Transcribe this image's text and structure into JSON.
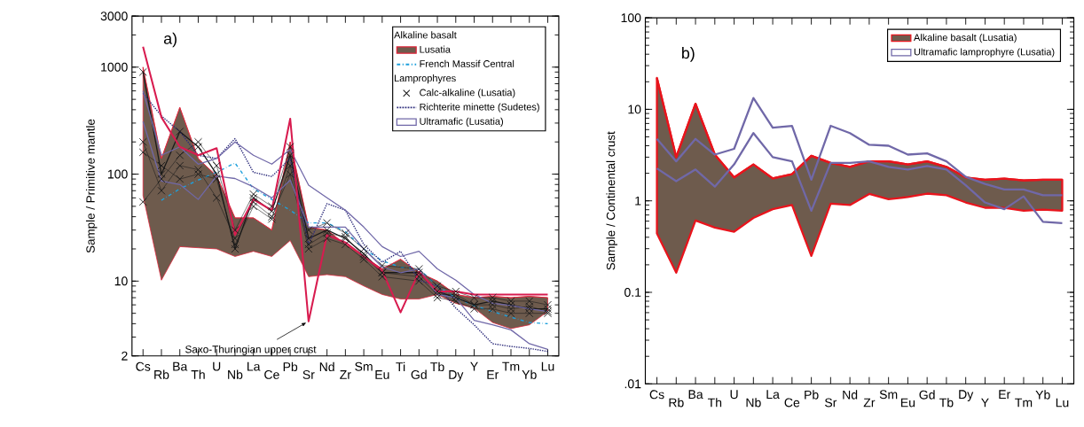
{
  "chart_data": [
    {
      "type": "line",
      "ylabel": "Sample / Primitive mantle",
      "log": "y",
      "ylim": [
        2,
        3000
      ],
      "yticks": [
        2,
        10,
        100,
        1000,
        3000
      ],
      "legend": "top right",
      "legend_title": "Alkaline basalt",
      "categories": [
        "Cs",
        "Rb",
        "Ba",
        "Th",
        "U",
        "Nb",
        "La",
        "Ce",
        "Pb",
        "Sr",
        "Nd",
        "Zr",
        "Sm",
        "Eu",
        "Ti",
        "Gd",
        "Tb",
        "Dy",
        "Y",
        "Er",
        "Tm",
        "Yb",
        "Lu"
      ],
      "annotations": [
        "a)",
        {
          "text": "Saxo-Thuringian upper crust",
          "x": "Sr",
          "y": 4.2
        },
        "Lamprophyres"
      ],
      "series": [
        {
          "name": "Lusatia",
          "color": "#e0243a",
          "values": [
            1000,
            140,
            420,
            140,
            96,
            39,
            39,
            30,
            200,
            32,
            30,
            22,
            17,
            13,
            16,
            12,
            10,
            7.5,
            7,
            7.2,
            7,
            7.2,
            7
          ],
          "upper": [
            1000,
            140,
            420,
            140,
            96,
            39,
            39,
            30,
            200,
            32,
            30,
            22,
            17,
            13,
            16,
            12,
            10,
            7.5,
            7,
            7.2,
            7,
            7.2,
            7
          ],
          "lower": [
            63,
            10.2,
            21,
            20.5,
            20,
            17,
            19,
            17,
            24,
            11,
            11.5,
            11,
            9,
            7.5,
            6.8,
            6.8,
            7.5,
            6.2,
            5.6,
            4.1,
            3.6,
            3.9,
            5.2
          ]
        },
        {
          "name": "French Massif Central",
          "color": "#1ea0dc",
          "line_style": "dashdotted",
          "values": [
            null,
            57,
            73,
            88,
            104,
            127,
            73,
            58,
            46,
            35,
            35,
            29,
            20,
            15.5,
            13.5,
            13,
            9,
            7,
            5.9,
            5.2,
            4.6,
            4.1,
            4.0
          ]
        },
        {
          "name": "Calc-alkaline (Lusatia)",
          "color": "#1a1a1a",
          "marker": "cross",
          "values": [
            900,
            100,
            250,
            180,
            100,
            20,
            60,
            45,
            150,
            25,
            30,
            25,
            18,
            12,
            null,
            12,
            8,
            7,
            6,
            6.5,
            6,
            5.5,
            5.5
          ]
        },
        {
          "color": "#1a1a1a",
          "marker": "cross",
          "values": [
            200,
            70,
            120,
            110,
            60,
            25,
            55,
            40,
            100,
            20,
            25,
            22,
            16,
            11,
            null,
            10,
            7,
            6.5,
            5.5,
            5.5,
            5,
            5,
            5
          ]
        },
        {
          "color": "#1a1a1a",
          "marker": "cross",
          "values": [
            55,
            90,
            150,
            200,
            120,
            30,
            65,
            50,
            180,
            30,
            35,
            28,
            20,
            14,
            null,
            13,
            9,
            8,
            7,
            7,
            6.5,
            6.5,
            6
          ]
        },
        {
          "color": "#1a1a1a",
          "marker": "cross",
          "values": [
            160,
            120,
            90,
            100,
            90,
            22,
            50,
            38,
            120,
            22,
            28,
            26,
            17,
            12,
            null,
            11,
            7.5,
            7.5,
            6,
            6,
            5.5,
            5.8,
            5.2
          ]
        },
        {
          "name": "Richterite minette (Sudetes)",
          "color": "#2b2a7a",
          "line_style": "dotted",
          "values": [
            570,
            350,
            250,
            150,
            140,
            215,
            104,
            95,
            140,
            22,
            53,
            46,
            22,
            15,
            19,
            10.2,
            9,
            5.6,
            3.9,
            2.6,
            2.45,
            2.35,
            2.2
          ]
        },
        {
          "name": "Ultramafic (Lusatia)",
          "color": "#7068a8",
          "values": [
            600,
            150,
            180,
            124,
            140,
            200,
            150,
            124,
            170,
            79,
            60,
            46,
            32,
            21,
            17,
            19,
            13,
            10.2,
            7.5,
            6.2,
            5.9,
            5.5,
            5.2
          ]
        },
        {
          "color": "#7068a8",
          "values": [
            310,
            86,
            80,
            58,
            96,
            91,
            76,
            60,
            88,
            32,
            32,
            32,
            20,
            13.5,
            12,
            13,
            7.5,
            7,
            4.3,
            3.9,
            3.5,
            2.6,
            2.3
          ]
        },
        {
          "color": "#d81b4f",
          "values": [
            1550,
            340,
            180,
            150,
            175,
            27,
            58,
            46,
            330,
            4.2,
            27,
            23,
            17,
            12.5,
            5.1,
            12.2,
            8,
            8,
            7.5,
            7.5,
            7.5,
            7.5,
            7.5
          ]
        }
      ]
    },
    {
      "type": "line",
      "ylabel": "Sample / Continental crust",
      "log": "y",
      "ylim": [
        0.01,
        100
      ],
      "yticks": [
        {
          "value": 0.01,
          "label": ".01"
        },
        0.1,
        1,
        10,
        100
      ],
      "legend": "top right",
      "categories": [
        "Cs",
        "Rb",
        "Ba",
        "Th",
        "U",
        "Nb",
        "La",
        "Ce",
        "Pb",
        "Sr",
        "Nd",
        "Zr",
        "Sm",
        "Eu",
        "Gd",
        "Tb",
        "Dy",
        "Y",
        "Er",
        "Tm",
        "Yb",
        "Lu"
      ],
      "annotations": [
        "b)"
      ],
      "series": [
        {
          "name": "Alkaline basalt (Lusatia)",
          "color": "#e8141c",
          "values": [
            22,
            3.0,
            11.5,
            3.2,
            1.8,
            2.5,
            1.76,
            1.96,
            3.1,
            2.6,
            2.35,
            2.7,
            2.7,
            2.5,
            2.7,
            2.35,
            1.8,
            1.7,
            1.75,
            1.67,
            1.7,
            1.7
          ],
          "upper": [
            22,
            3.0,
            11.5,
            3.2,
            1.8,
            2.5,
            1.76,
            1.96,
            3.1,
            2.6,
            2.35,
            2.7,
            2.7,
            2.5,
            2.7,
            2.35,
            1.8,
            1.7,
            1.75,
            1.67,
            1.7,
            1.7
          ],
          "lower": [
            0.44,
            0.164,
            0.61,
            0.51,
            0.46,
            0.65,
            0.81,
            0.9,
            0.25,
            0.93,
            0.9,
            1.19,
            1.04,
            1.1,
            1.2,
            1.15,
            0.96,
            0.84,
            0.84,
            0.78,
            0.8,
            0.78
          ]
        },
        {
          "name": "Ultramafic lamprophyre (Lusatia)",
          "color": "#7068a8",
          "values": [
            4.75,
            2.7,
            4.75,
            3.2,
            3.7,
            13.3,
            6.3,
            6.6,
            1.7,
            6.6,
            5.5,
            4.1,
            4.0,
            3.2,
            3.3,
            2.7,
            1.83,
            1.53,
            1.33,
            1.33,
            1.15,
            1.15
          ]
        },
        {
          "color": "#7068a8",
          "values": [
            2.26,
            1.64,
            2.2,
            1.43,
            2.5,
            5.5,
            3.0,
            2.7,
            0.78,
            2.6,
            2.6,
            2.7,
            2.35,
            2.2,
            2.4,
            2.2,
            1.48,
            0.96,
            0.81,
            1.12,
            0.59,
            0.57
          ]
        }
      ]
    }
  ]
}
